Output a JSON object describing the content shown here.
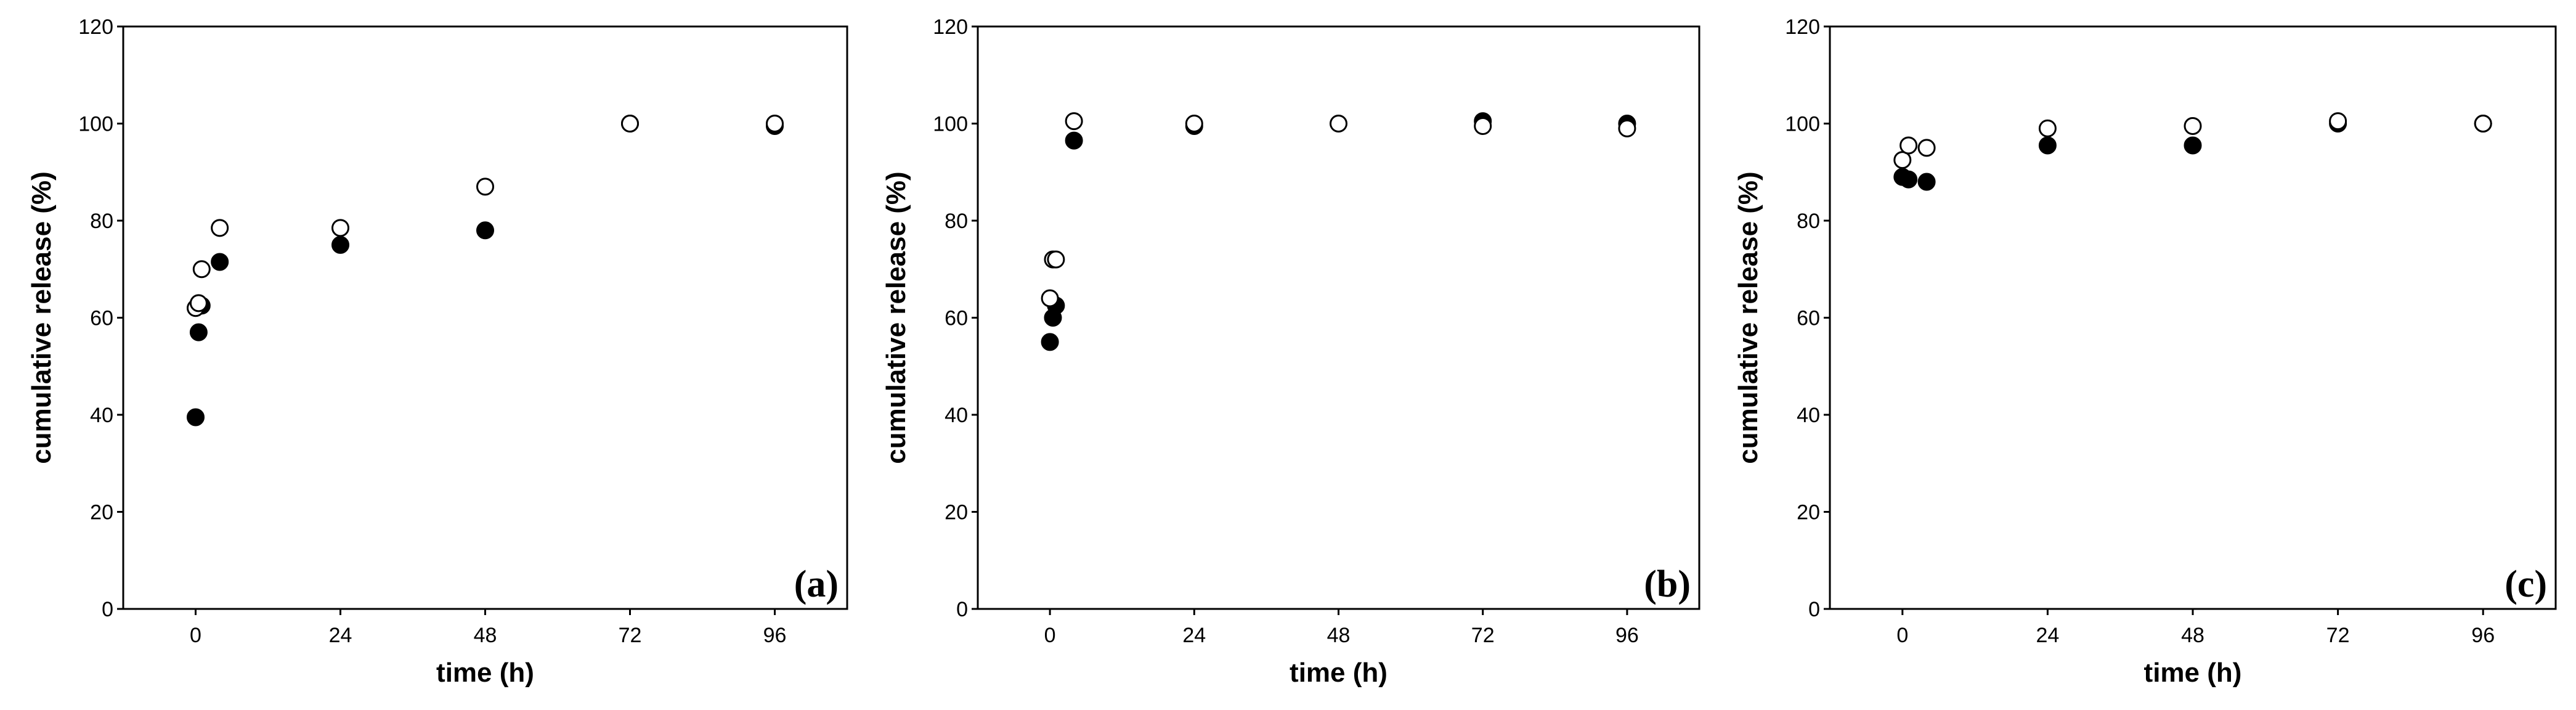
{
  "chart_data": [
    {
      "type": "scatter",
      "panel_label": "(a)",
      "xlabel": "time (h)",
      "ylabel": "cumulative release (%)",
      "xlim": [
        -12,
        108
      ],
      "ylim": [
        0,
        120
      ],
      "xticks": [
        0,
        24,
        48,
        72,
        96
      ],
      "yticks": [
        0,
        20,
        40,
        60,
        80,
        100,
        120
      ],
      "grid": false,
      "series": [
        {
          "marker": "filled-circle",
          "color": "#000000",
          "x": [
            0,
            0.5,
            1,
            4,
            24,
            48,
            72,
            96
          ],
          "y": [
            39.5,
            57,
            62.5,
            71.5,
            75,
            78,
            100,
            99.5
          ]
        },
        {
          "marker": "open-circle",
          "color": "#000000",
          "x": [
            0,
            0.5,
            1,
            4,
            24,
            48,
            72,
            96
          ],
          "y": [
            62,
            63,
            70,
            78.5,
            78.5,
            87,
            100,
            100
          ]
        }
      ]
    },
    {
      "type": "scatter",
      "panel_label": "(b)",
      "xlabel": "time (h)",
      "ylabel": "cumulative release (%)",
      "xlim": [
        -12,
        108
      ],
      "ylim": [
        0,
        120
      ],
      "xticks": [
        0,
        24,
        48,
        72,
        96
      ],
      "yticks": [
        0,
        20,
        40,
        60,
        80,
        100,
        120
      ],
      "grid": false,
      "series": [
        {
          "marker": "filled-circle",
          "color": "#000000",
          "x": [
            0,
            0.5,
            1,
            4,
            24,
            72,
            96
          ],
          "y": [
            55,
            60,
            62.5,
            96.5,
            99.5,
            100.5,
            100
          ]
        },
        {
          "marker": "open-circle",
          "color": "#000000",
          "x": [
            0,
            0.5,
            1,
            4,
            24,
            48,
            72,
            96
          ],
          "y": [
            64,
            72,
            72,
            100.5,
            100,
            100,
            99.5,
            99
          ]
        }
      ]
    },
    {
      "type": "scatter",
      "panel_label": "(c)",
      "xlabel": "time (h)",
      "ylabel": "cumulative release (%)",
      "xlim": [
        -12,
        108
      ],
      "ylim": [
        0,
        120
      ],
      "xticks": [
        0,
        24,
        48,
        72,
        96
      ],
      "yticks": [
        0,
        20,
        40,
        60,
        80,
        100,
        120
      ],
      "grid": false,
      "series": [
        {
          "marker": "filled-circle",
          "color": "#000000",
          "x": [
            0,
            1,
            4,
            24,
            48,
            72,
            96
          ],
          "y": [
            89,
            88.5,
            88,
            95.5,
            95.5,
            100,
            100
          ]
        },
        {
          "marker": "open-circle",
          "color": "#000000",
          "x": [
            0,
            1,
            4,
            24,
            48,
            72,
            96
          ],
          "y": [
            92.5,
            95.5,
            95,
            99,
            99.5,
            100.5,
            100
          ]
        }
      ]
    }
  ]
}
